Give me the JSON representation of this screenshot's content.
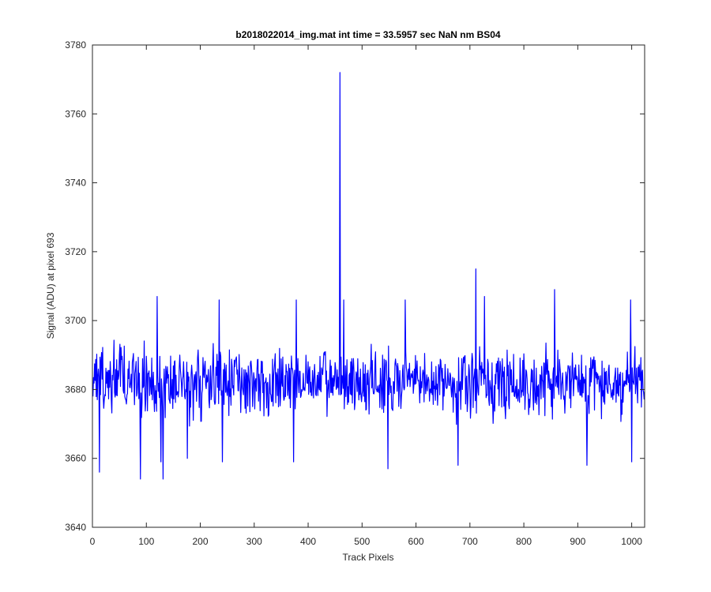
{
  "chart_data": {
    "type": "line",
    "title": "b2018022014_img.mat int time = 33.5957 sec  NaN nm BS04",
    "xlabel": "Track Pixels",
    "ylabel": "Signal (ADU) at pixel 693",
    "xlim": [
      0,
      1024
    ],
    "ylim": [
      3640,
      3780
    ],
    "xticks": [
      0,
      100,
      200,
      300,
      400,
      500,
      600,
      700,
      800,
      900,
      1000
    ],
    "yticks": [
      3640,
      3660,
      3680,
      3700,
      3720,
      3740,
      3760,
      3780
    ],
    "grid": false,
    "legend": "none",
    "series_color": "#0000ff",
    "series": [
      {
        "x_start": 1,
        "x_step": 1,
        "baseline": 3682,
        "noise_amplitude": 8,
        "seed": 693,
        "spikes": [
          {
            "x": 13,
            "y": 3656
          },
          {
            "x": 89,
            "y": 3654
          },
          {
            "x": 120,
            "y": 3707
          },
          {
            "x": 127,
            "y": 3659
          },
          {
            "x": 131,
            "y": 3654
          },
          {
            "x": 176,
            "y": 3660
          },
          {
            "x": 241,
            "y": 3659
          },
          {
            "x": 235,
            "y": 3706
          },
          {
            "x": 373,
            "y": 3659
          },
          {
            "x": 378,
            "y": 3706
          },
          {
            "x": 459,
            "y": 3772
          },
          {
            "x": 466,
            "y": 3706
          },
          {
            "x": 548,
            "y": 3657
          },
          {
            "x": 580,
            "y": 3706
          },
          {
            "x": 678,
            "y": 3658
          },
          {
            "x": 711,
            "y": 3715
          },
          {
            "x": 727,
            "y": 3707
          },
          {
            "x": 857,
            "y": 3709
          },
          {
            "x": 917,
            "y": 3658
          },
          {
            "x": 1000,
            "y": 3659
          },
          {
            "x": 998,
            "y": 3706
          }
        ]
      }
    ]
  }
}
